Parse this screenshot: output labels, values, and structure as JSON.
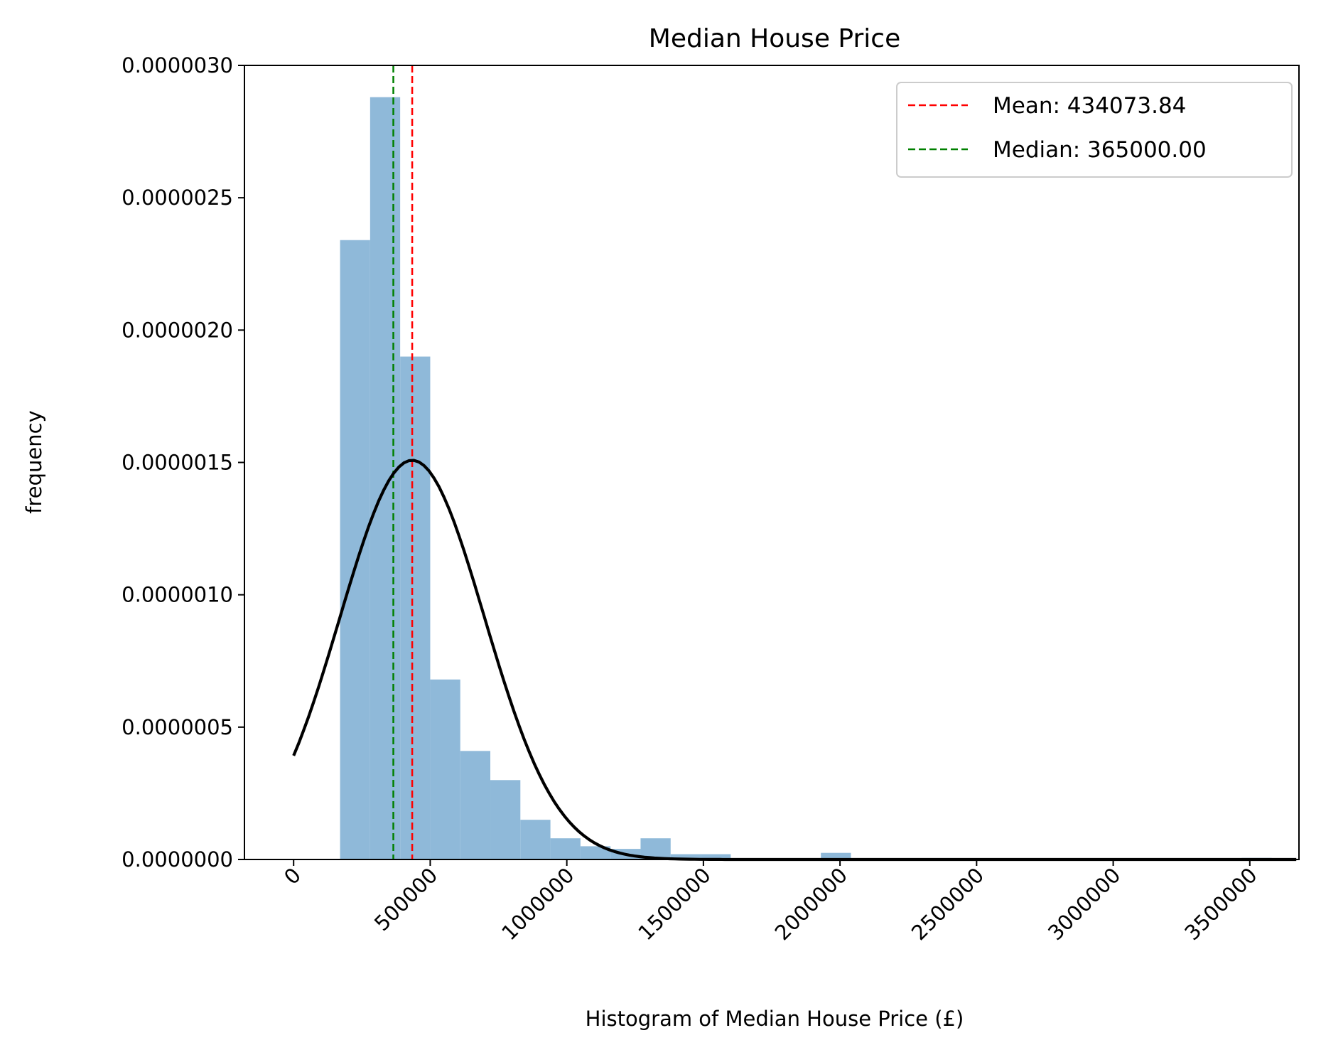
{
  "chart_data": {
    "type": "bar",
    "title": "Median House Price",
    "xlabel": "Histogram of Median House Price (£)",
    "ylabel": "frequency",
    "xlim": [
      -180000,
      3680000
    ],
    "ylim": [
      0,
      3e-06
    ],
    "x_ticks": [
      0,
      500000,
      1000000,
      1500000,
      2000000,
      2500000,
      3000000,
      3500000
    ],
    "x_tick_labels": [
      "0",
      "500000",
      "1000000",
      "1500000",
      "2000000",
      "2500000",
      "3000000",
      "3500000"
    ],
    "y_ticks": [
      0,
      5e-07,
      1e-06,
      1.5e-06,
      2e-06,
      2.5e-06,
      3e-06
    ],
    "y_tick_labels": [
      "0.0000000",
      "0.0000005",
      "0.0000010",
      "0.0000015",
      "0.0000020",
      "0.0000025",
      "0.0000030"
    ],
    "histogram": {
      "color": "#8fb9d9",
      "bin_edges": [
        170000,
        280000,
        390000,
        500000,
        610000,
        720000,
        830000,
        940000,
        1050000,
        1160000,
        1270000,
        1380000,
        1490000,
        1600000,
        1710000,
        1820000,
        1930000,
        2040000,
        2150000,
        2260000,
        2370000,
        2480000,
        2590000,
        2700000,
        2810000,
        2920000,
        3030000,
        3140000,
        3250000,
        3360000,
        3470000,
        3580000
      ],
      "density": [
        2.34e-06,
        2.88e-06,
        1.9e-06,
        6.8e-07,
        4.1e-07,
        3e-07,
        1.5e-07,
        8e-08,
        5e-08,
        4e-08,
        8e-08,
        2e-08,
        2e-08,
        5e-09,
        5e-09,
        5e-09,
        2.5e-08,
        3e-09,
        3e-09,
        3e-09,
        3e-09,
        3e-09,
        3e-09,
        3e-09,
        3e-09,
        3e-09,
        3e-09,
        3e-09,
        3e-09,
        3e-09,
        6e-09
      ]
    },
    "normal_curve": {
      "mean": 434073.84,
      "std": 264500,
      "x_range": [
        0,
        3670000
      ],
      "color": "#000000"
    },
    "vlines": [
      {
        "label": "Mean: 434073.84",
        "x": 434073.84,
        "color": "#ff0000"
      },
      {
        "label": "Median: 365000.00",
        "x": 365000.0,
        "color": "#008000"
      }
    ],
    "legend_position": "top-right",
    "grid": false
  }
}
